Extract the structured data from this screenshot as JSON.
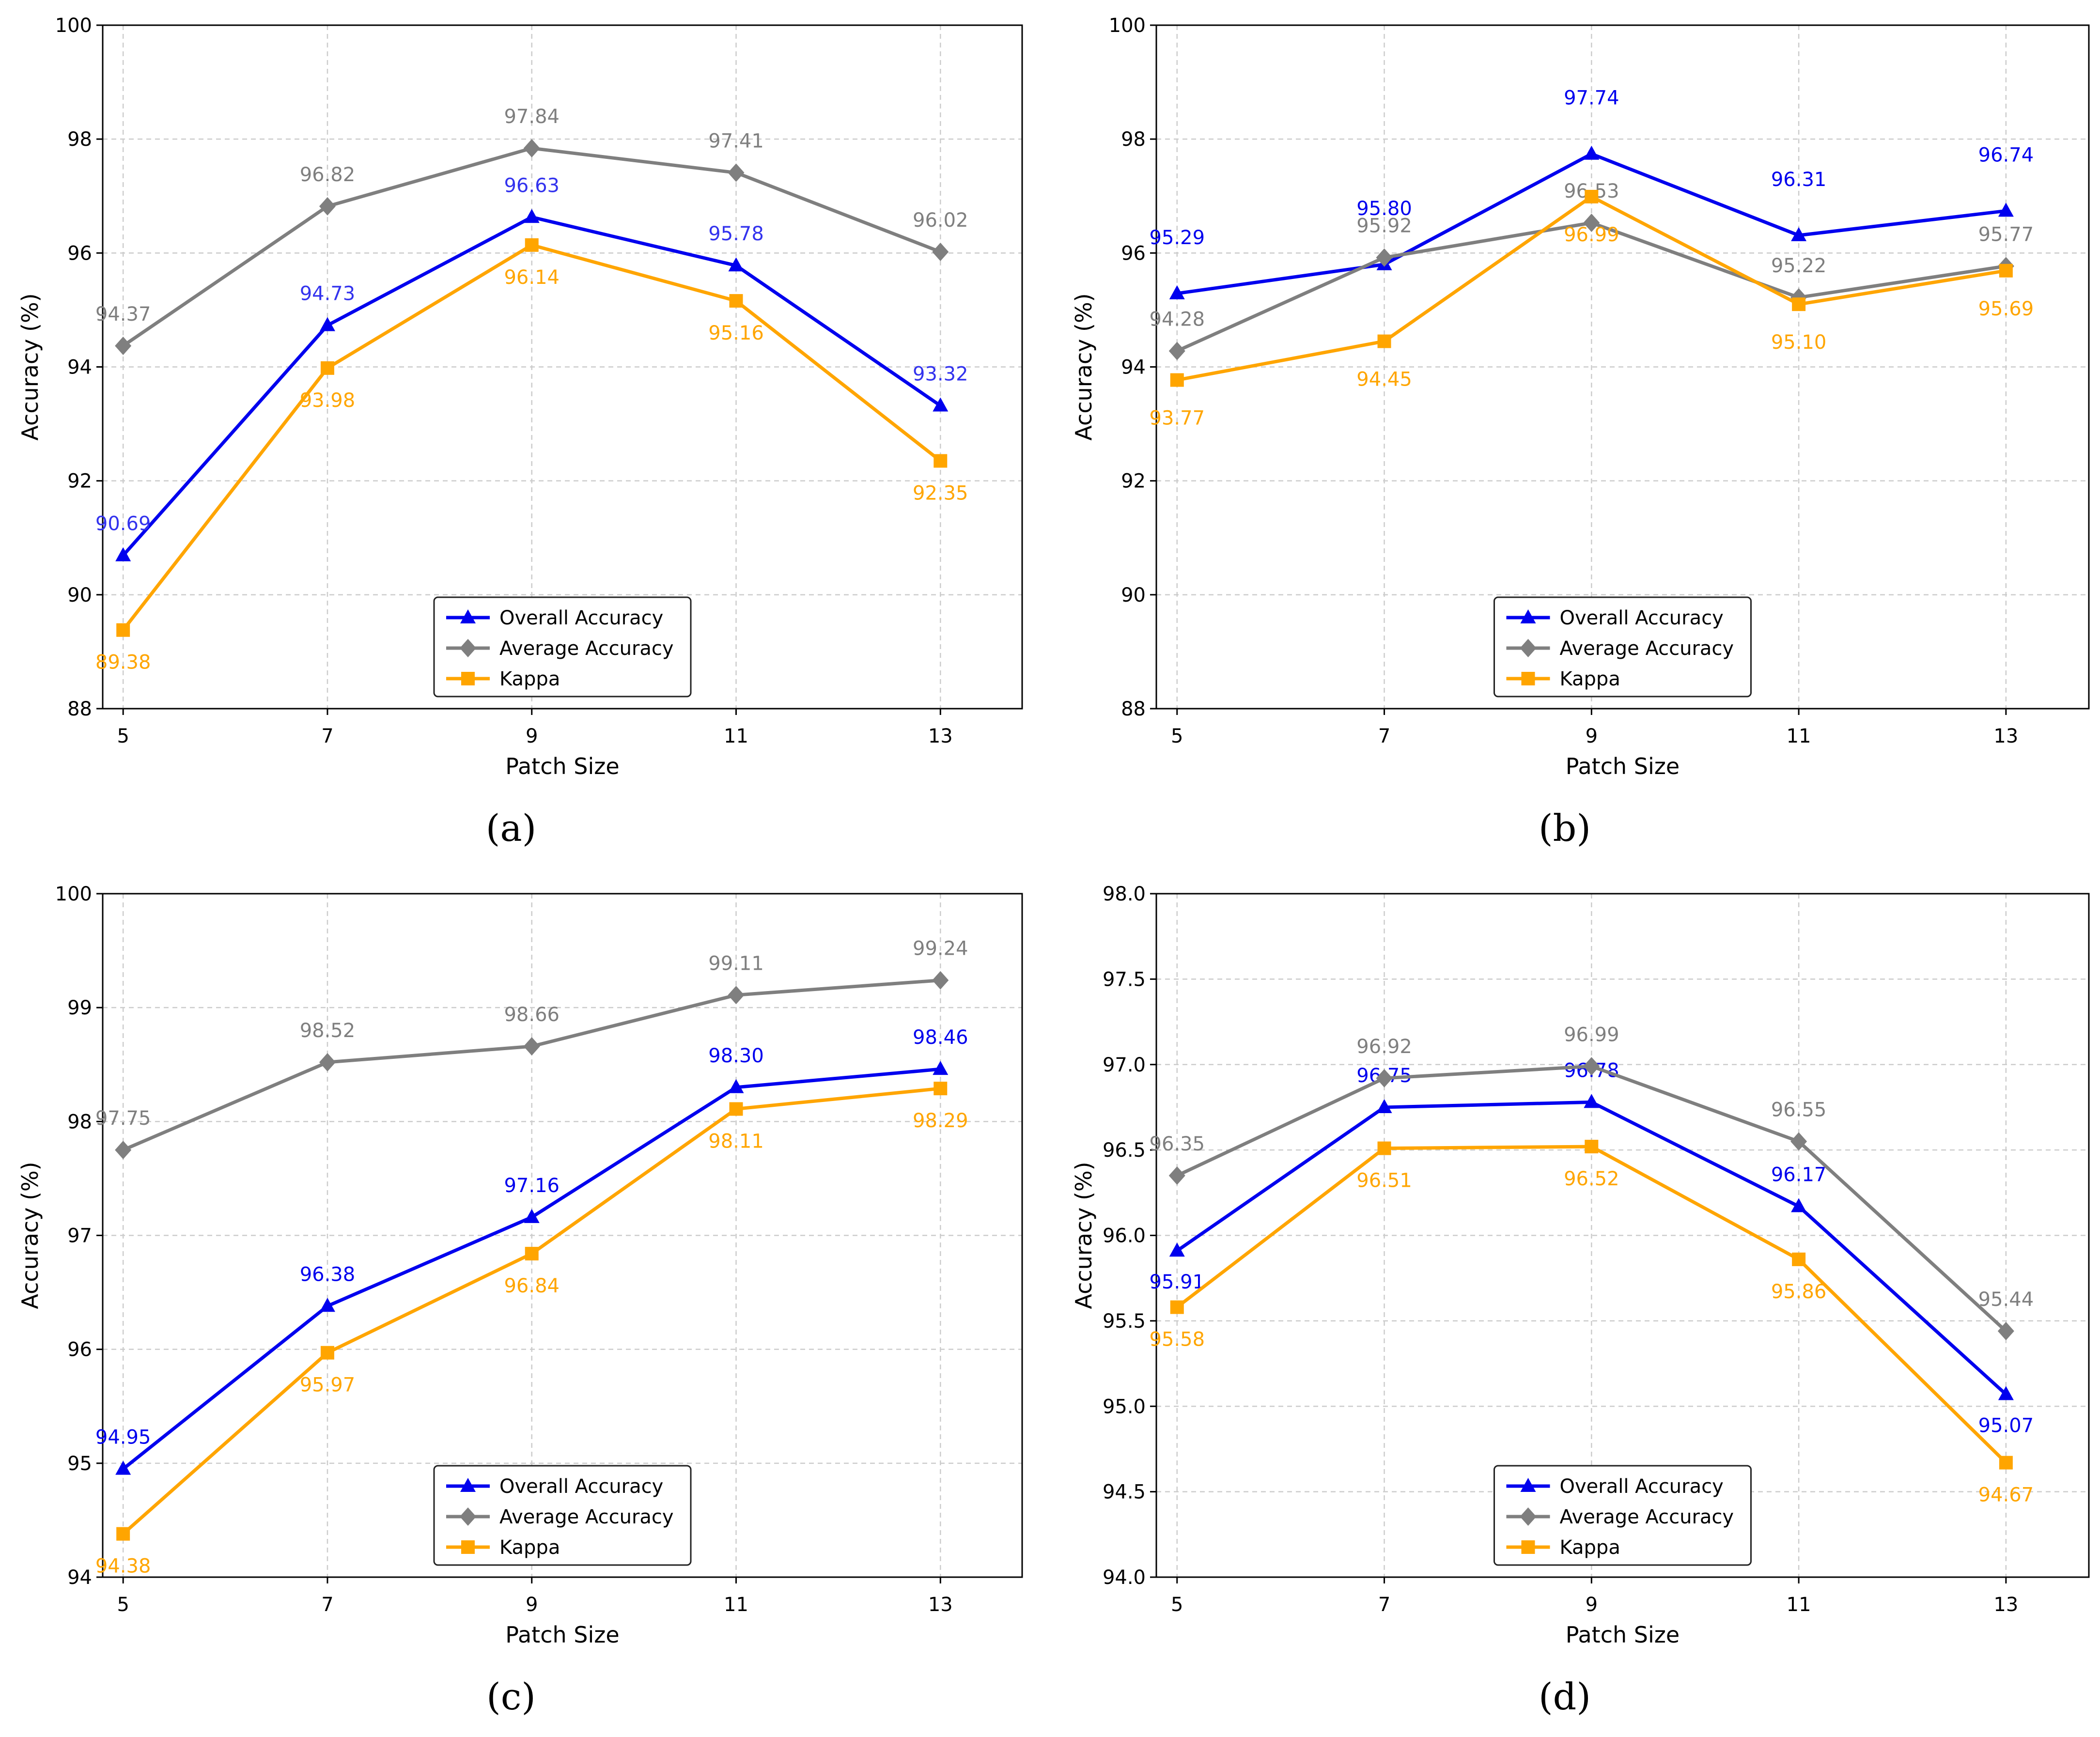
{
  "figure": {
    "xlabel": "Patch Size",
    "ylabel": "Accuracy (%)",
    "legend": [
      "Overall Accuracy",
      "Average Accuracy",
      "Kappa"
    ]
  },
  "colors": {
    "overall": "#0000ee",
    "average": "#7f7f7f",
    "kappa": "#ffa500",
    "overall_label": "#3333ee",
    "grid": "#cccccc"
  },
  "chart_data": [
    {
      "type": "line",
      "caption": "(a)",
      "xlabel": "Patch Size",
      "ylabel": "Accuracy (%)",
      "x": [
        5,
        7,
        9,
        11,
        13
      ],
      "ylim": [
        88,
        100
      ],
      "yticks": [
        "88",
        "90",
        "92",
        "94",
        "96",
        "98",
        "100"
      ],
      "legend_position": "bottom-center",
      "series": [
        {
          "name": "Overall Accuracy",
          "key": "overall",
          "marker": "triangle",
          "values": [
            90.69,
            94.73,
            96.63,
            95.78,
            93.32
          ],
          "labels": [
            "90.69",
            "94.73",
            "96.63",
            "95.78",
            "93.32"
          ]
        },
        {
          "name": "Average Accuracy",
          "key": "average",
          "marker": "diamond",
          "values": [
            94.37,
            96.82,
            97.84,
            97.41,
            96.02
          ],
          "labels": [
            "94.37",
            "96.82",
            "97.84",
            "97.41",
            "96.02"
          ]
        },
        {
          "name": "Kappa",
          "key": "kappa",
          "marker": "square",
          "values": [
            89.38,
            93.98,
            96.14,
            95.16,
            92.35
          ],
          "labels": [
            "89.38",
            "93.98",
            "96.14",
            "95.16",
            "92.35"
          ]
        }
      ]
    },
    {
      "type": "line",
      "caption": "(b)",
      "xlabel": "Patch Size",
      "ylabel": "Accuracy (%)",
      "x": [
        5,
        7,
        9,
        11,
        13
      ],
      "ylim": [
        88,
        100
      ],
      "yticks": [
        "88",
        "90",
        "92",
        "94",
        "96",
        "98",
        "100"
      ],
      "legend_position": "bottom-center",
      "series": [
        {
          "name": "Overall Accuracy",
          "key": "overall",
          "marker": "triangle",
          "values": [
            95.29,
            95.8,
            97.74,
            96.31,
            96.74
          ],
          "labels": [
            "95.29",
            "95.80",
            "97.74",
            "96.31",
            "96.74"
          ]
        },
        {
          "name": "Average Accuracy",
          "key": "average",
          "marker": "diamond",
          "values": [
            94.28,
            95.92,
            96.53,
            95.22,
            95.77
          ],
          "labels": [
            "94.28",
            "95.92",
            "96.53",
            "95.22",
            "95.77"
          ]
        },
        {
          "name": "Kappa",
          "key": "kappa",
          "marker": "square",
          "values": [
            93.77,
            94.45,
            96.99,
            95.1,
            95.69
          ],
          "labels": [
            "93.77",
            "94.45",
            "96.99",
            "95.10",
            "95.69"
          ]
        }
      ]
    },
    {
      "type": "line",
      "caption": "(c)",
      "xlabel": "Patch Size",
      "ylabel": "Accuracy (%)",
      "x": [
        5,
        7,
        9,
        11,
        13
      ],
      "ylim": [
        94,
        100
      ],
      "yticks": [
        "94",
        "95",
        "96",
        "97",
        "98",
        "99",
        "100"
      ],
      "legend_position": "bottom-center",
      "series": [
        {
          "name": "Overall Accuracy",
          "key": "overall",
          "marker": "triangle",
          "values": [
            94.95,
            96.38,
            97.16,
            98.3,
            98.46
          ],
          "labels": [
            "94.95",
            "96.38",
            "97.16",
            "98.30",
            "98.46"
          ]
        },
        {
          "name": "Average Accuracy",
          "key": "average",
          "marker": "diamond",
          "values": [
            97.75,
            98.52,
            98.66,
            99.11,
            99.24
          ],
          "labels": [
            "97.75",
            "98.52",
            "98.66",
            "99.11",
            "99.24"
          ]
        },
        {
          "name": "Kappa",
          "key": "kappa",
          "marker": "square",
          "values": [
            94.38,
            95.97,
            96.84,
            98.11,
            98.29
          ],
          "labels": [
            "94.38",
            "95.97",
            "96.84",
            "98.11",
            "98.29"
          ]
        }
      ]
    },
    {
      "type": "line",
      "caption": "(d)",
      "xlabel": "Patch Size",
      "ylabel": "Accuracy (%)",
      "x": [
        5,
        7,
        9,
        11,
        13
      ],
      "ylim": [
        94,
        98
      ],
      "yticks": [
        "94.0",
        "94.5",
        "95.0",
        "95.5",
        "96.0",
        "96.5",
        "97.0",
        "97.5",
        "98.0"
      ],
      "legend_position": "bottom-center",
      "series": [
        {
          "name": "Overall Accuracy",
          "key": "overall",
          "marker": "triangle",
          "values": [
            95.91,
            96.75,
            96.78,
            96.17,
            95.07
          ],
          "labels": [
            "95.91",
            "96.75",
            "96.78",
            "96.17",
            "95.07"
          ]
        },
        {
          "name": "Average Accuracy",
          "key": "average",
          "marker": "diamond",
          "values": [
            96.35,
            96.92,
            96.99,
            96.55,
            95.44
          ],
          "labels": [
            "96.35",
            "96.92",
            "96.99",
            "96.55",
            "95.44"
          ]
        },
        {
          "name": "Kappa",
          "key": "kappa",
          "marker": "square",
          "values": [
            95.58,
            96.51,
            96.52,
            95.86,
            94.67
          ],
          "labels": [
            "95.58",
            "96.51",
            "96.52",
            "95.86",
            "94.67"
          ]
        }
      ]
    }
  ]
}
